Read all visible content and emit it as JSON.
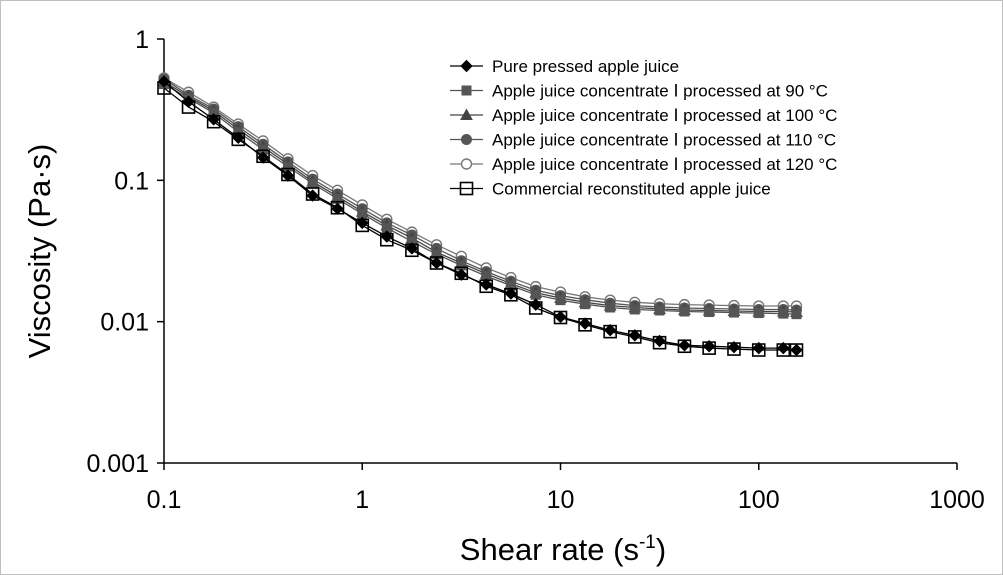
{
  "chart_data": {
    "type": "line",
    "xlabel": "Shear rate (s",
    "xlabel_sup": "-1",
    "xlabel_end": ")",
    "ylabel": "Viscosity (Pa·s)",
    "xscale": "log",
    "yscale": "log",
    "xlim": [
      0.1,
      1000
    ],
    "ylim": [
      0.001,
      1
    ],
    "x_ticks": [
      0.1,
      1,
      10,
      100,
      1000
    ],
    "x_tick_labels": [
      "0.1",
      "1",
      "10",
      "100",
      "1000"
    ],
    "y_ticks": [
      0.001,
      0.01,
      0.1,
      1
    ],
    "y_tick_labels": [
      "0.001",
      "0.01",
      "0.1",
      "1"
    ],
    "grid": false,
    "legend_position": "top-right",
    "x": [
      0.1,
      0.133,
      0.178,
      0.237,
      0.316,
      0.422,
      0.562,
      0.75,
      1,
      1.33,
      1.78,
      2.37,
      3.16,
      4.22,
      5.62,
      7.5,
      10,
      13.3,
      17.8,
      23.7,
      31.6,
      42.2,
      56.2,
      75,
      100,
      133,
      155
    ],
    "series": [
      {
        "name": "Pure pressed apple juice",
        "marker": "diamond-filled",
        "color": "#000000",
        "values": [
          0.5,
          0.36,
          0.27,
          0.2,
          0.145,
          0.108,
          0.078,
          0.063,
          0.05,
          0.04,
          0.033,
          0.026,
          0.0215,
          0.0183,
          0.0158,
          0.0132,
          0.0108,
          0.0097,
          0.0087,
          0.008,
          0.0073,
          0.0068,
          0.0067,
          0.0066,
          0.0065,
          0.0065,
          0.0063
        ]
      },
      {
        "name": "Apple juice concentrate Ⅰ processed at 90 °C",
        "marker": "square-filled",
        "color": "#555555",
        "values": [
          0.48,
          0.38,
          0.3,
          0.22,
          0.165,
          0.125,
          0.095,
          0.074,
          0.058,
          0.046,
          0.037,
          0.03,
          0.025,
          0.021,
          0.018,
          0.0155,
          0.0142,
          0.0133,
          0.0126,
          0.0122,
          0.012,
          0.0118,
          0.0117,
          0.0116,
          0.0115,
          0.0114,
          0.0113
        ]
      },
      {
        "name": "Apple juice concentrate Ⅰ processed at 100 °C",
        "marker": "triangle-filled",
        "color": "#444444",
        "values": [
          0.5,
          0.39,
          0.31,
          0.23,
          0.172,
          0.13,
          0.098,
          0.077,
          0.06,
          0.048,
          0.039,
          0.031,
          0.026,
          0.0218,
          0.0186,
          0.016,
          0.0147,
          0.0137,
          0.013,
          0.0126,
          0.0123,
          0.0121,
          0.012,
          0.0119,
          0.0118,
          0.0118,
          0.0117
        ]
      },
      {
        "name": "Apple juice concentrate Ⅰ processed at 110 °C",
        "marker": "circle-filled",
        "color": "#555555",
        "values": [
          0.52,
          0.4,
          0.32,
          0.24,
          0.18,
          0.135,
          0.102,
          0.08,
          0.063,
          0.05,
          0.041,
          0.033,
          0.027,
          0.0226,
          0.0193,
          0.0167,
          0.0153,
          0.0143,
          0.0135,
          0.013,
          0.0127,
          0.0125,
          0.0124,
          0.0123,
          0.0122,
          0.0122,
          0.0121
        ]
      },
      {
        "name": "Apple juice concentrate Ⅰ processed at 120 °C",
        "marker": "circle-open",
        "color": "#777777",
        "values": [
          0.53,
          0.42,
          0.33,
          0.25,
          0.19,
          0.142,
          0.108,
          0.085,
          0.067,
          0.053,
          0.043,
          0.035,
          0.029,
          0.024,
          0.0205,
          0.0177,
          0.0162,
          0.015,
          0.0142,
          0.0137,
          0.0134,
          0.0132,
          0.0131,
          0.013,
          0.0129,
          0.0129,
          0.0129
        ]
      },
      {
        "name": "Commercial reconstituted apple juice",
        "marker": "square-open",
        "color": "#000000",
        "values": [
          0.45,
          0.33,
          0.26,
          0.195,
          0.148,
          0.11,
          0.08,
          0.064,
          0.048,
          0.038,
          0.032,
          0.026,
          0.022,
          0.0178,
          0.0155,
          0.0125,
          0.0107,
          0.0095,
          0.0085,
          0.0078,
          0.0071,
          0.0067,
          0.0065,
          0.0064,
          0.0063,
          0.0063,
          0.0063
        ]
      }
    ]
  }
}
